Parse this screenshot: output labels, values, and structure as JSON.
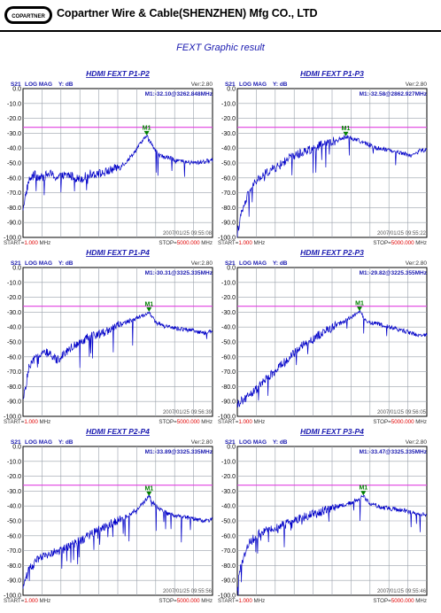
{
  "header": {
    "logo_text": "COPARTNER",
    "company": "Copartner Wire & Cable(SHENZHEN) Mfg CO., LTD",
    "subtitle": "FEXT Graphic result"
  },
  "colors": {
    "trace": "#0000c8",
    "limit": "#e040e0",
    "grid": "#9aa0aa",
    "marker": "#008000"
  },
  "chart_data": [
    {
      "type": "line",
      "title": "HDMI FEXT P1-P2",
      "param": "S21",
      "format": "LOG MAG",
      "yunit": "Y: dB",
      "version": "Ver:2.80",
      "marker": {
        "label": "M1",
        "text": "M1:-32.10@3262.848MHz",
        "x": 3262.848,
        "y": -32.1
      },
      "timestamp": "2007/01/25 09:55:08",
      "start_label": "START=",
      "start_value": "1.000",
      "stop_label": "STOP=",
      "stop_value": "5000.000",
      "freq_unit": "MHz",
      "xlim": [
        1,
        5000
      ],
      "ylim": [
        -100,
        0
      ],
      "yticks": [
        "0.0",
        "-10.0",
        "-20.0",
        "-30.0",
        "-40.0",
        "-50.0",
        "-60.0",
        "-70.0",
        "-80.0",
        "-90.0",
        "-100.0"
      ],
      "limit_line_db": -26,
      "series": [
        {
          "x": [
            1,
            150,
            300,
            500,
            700,
            900,
            1200,
            1500,
            1800,
            2100,
            2400,
            2700,
            2900,
            3100,
            3262.848,
            3400,
            3600,
            3900,
            4200,
            4500,
            4800,
            5000
          ],
          "y": [
            -80,
            -62,
            -58,
            -60,
            -57,
            -60,
            -58,
            -61,
            -57,
            -57,
            -54,
            -50,
            -44,
            -37,
            -32.1,
            -38,
            -45,
            -47,
            -49,
            -50,
            -49,
            -48
          ]
        }
      ]
    },
    {
      "type": "line",
      "title": "HDMI FEXT P1-P3",
      "param": "S21",
      "format": "LOG MAG",
      "yunit": "Y: dB",
      "version": "Ver:2.80",
      "marker": {
        "label": "M1",
        "text": "M1:-32.58@2862.927MHz",
        "x": 2862.927,
        "y": -32.58
      },
      "timestamp": "2007/01/25 09:55:22",
      "start_label": "START=",
      "start_value": "1.000",
      "stop_label": "STOP=",
      "stop_value": "5000.000",
      "freq_unit": "MHz",
      "xlim": [
        1,
        5000
      ],
      "ylim": [
        -100,
        0
      ],
      "yticks": [
        "0.0",
        "-10.0",
        "-20.0",
        "-30.0",
        "-40.0",
        "-50.0",
        "-60.0",
        "-70.0",
        "-80.0",
        "-90.0",
        "-100.0"
      ],
      "limit_line_db": -26,
      "series": [
        {
          "x": [
            1,
            100,
            300,
            500,
            800,
            1100,
            1400,
            1700,
            2000,
            2300,
            2600,
            2862.927,
            3100,
            3400,
            3700,
            4000,
            4300,
            4600,
            4800,
            5000
          ],
          "y": [
            -97,
            -85,
            -70,
            -62,
            -56,
            -52,
            -46,
            -43,
            -40,
            -37,
            -35,
            -32.58,
            -34,
            -37,
            -40,
            -41,
            -43,
            -45,
            -42,
            -41
          ]
        }
      ]
    },
    {
      "type": "line",
      "title": "HDMI FEXT P1-P4",
      "param": "S21",
      "format": "LOG MAG",
      "yunit": "Y: dB",
      "version": "Ver:2.80",
      "marker": {
        "label": "M1",
        "text": "M1:-30.31@3325.335MHz",
        "x": 3325.335,
        "y": -30.31
      },
      "timestamp": "2007/01/25 09:56:39",
      "start_label": "START=",
      "start_value": "1.000",
      "stop_label": "STOP=",
      "stop_value": "5000.000",
      "freq_unit": "MHz",
      "xlim": [
        1,
        5000
      ],
      "ylim": [
        -100,
        0
      ],
      "yticks": [
        "0.0",
        "-10.0",
        "-20.0",
        "-30.0",
        "-40.0",
        "-50.0",
        "-60.0",
        "-70.0",
        "-80.0",
        "-90.0",
        "-100.0"
      ],
      "limit_line_db": -26,
      "series": [
        {
          "x": [
            1,
            150,
            350,
            600,
            900,
            1200,
            1500,
            1800,
            2100,
            2400,
            2700,
            3000,
            3325.335,
            3500,
            3800,
            4100,
            4400,
            4700,
            5000
          ],
          "y": [
            -90,
            -68,
            -60,
            -57,
            -62,
            -55,
            -50,
            -46,
            -44,
            -40,
            -37,
            -34,
            -30.31,
            -37,
            -40,
            -41,
            -42,
            -44,
            -43
          ]
        }
      ]
    },
    {
      "type": "line",
      "title": "HDMI FEXT P2-P3",
      "param": "S21",
      "format": "LOG MAG",
      "yunit": "Y: dB",
      "version": "Ver:2.80",
      "marker": {
        "label": "M1",
        "text": "M1:-29.82@3225.355MHz",
        "x": 3225.355,
        "y": -29.82
      },
      "timestamp": "2007/01/25 09:56:05",
      "start_label": "START=",
      "start_value": "1.000",
      "stop_label": "STOP=",
      "stop_value": "5000.000",
      "freq_unit": "MHz",
      "xlim": [
        1,
        5000
      ],
      "ylim": [
        -100,
        0
      ],
      "yticks": [
        "0.0",
        "-10.0",
        "-20.0",
        "-30.0",
        "-40.0",
        "-50.0",
        "-60.0",
        "-70.0",
        "-80.0",
        "-90.0",
        "-100.0"
      ],
      "limit_line_db": -26,
      "series": [
        {
          "x": [
            1,
            200,
            500,
            800,
            1100,
            1400,
            1700,
            2000,
            2300,
            2600,
            2900,
            3225.355,
            3400,
            3700,
            4000,
            4300,
            4600,
            4800,
            5000
          ],
          "y": [
            -92,
            -88,
            -82,
            -74,
            -67,
            -60,
            -53,
            -48,
            -43,
            -39,
            -35,
            -29.82,
            -36,
            -38,
            -40,
            -42,
            -44,
            -46,
            -45
          ]
        }
      ]
    },
    {
      "type": "line",
      "title": "HDMI FEXT P2-P4",
      "param": "S21",
      "format": "LOG MAG",
      "yunit": "Y: dB",
      "version": "Ver:2.80",
      "marker": {
        "label": "M1",
        "text": "M1:-33.89@3325.335MHz",
        "x": 3325.335,
        "y": -33.89
      },
      "timestamp": "2007/01/25 09:55:56",
      "start_label": "START=",
      "start_value": "1.000",
      "stop_label": "STOP=",
      "stop_value": "5000.000",
      "freq_unit": "MHz",
      "xlim": [
        1,
        5000
      ],
      "ylim": [
        -100,
        0
      ],
      "yticks": [
        "0.0",
        "-10.0",
        "-20.0",
        "-30.0",
        "-40.0",
        "-50.0",
        "-60.0",
        "-70.0",
        "-80.0",
        "-90.0",
        "-100.0"
      ],
      "limit_line_db": -26,
      "series": [
        {
          "x": [
            1,
            150,
            400,
            700,
            1000,
            1300,
            1600,
            1900,
            2200,
            2500,
            2800,
            3100,
            3325.335,
            3500,
            3800,
            4100,
            4400,
            4700,
            5000
          ],
          "y": [
            -95,
            -83,
            -76,
            -72,
            -70,
            -66,
            -62,
            -57,
            -53,
            -50,
            -46,
            -40,
            -33.89,
            -40,
            -45,
            -47,
            -48,
            -50,
            -49
          ]
        }
      ]
    },
    {
      "type": "line",
      "title": "HDMI FEXT P3-P4",
      "param": "S21",
      "format": "LOG MAG",
      "yunit": "Y: dB",
      "version": "Ver:2.80",
      "marker": {
        "label": "M1",
        "text": "M1:-33.47@3325.335MHz",
        "x": 3325.335,
        "y": -33.47
      },
      "timestamp": "2007/01/25 09:55:46",
      "start_label": "START=",
      "start_value": "1.000",
      "stop_label": "STOP=",
      "stop_value": "5000.000",
      "freq_unit": "MHz",
      "xlim": [
        1,
        5000
      ],
      "ylim": [
        -100,
        0
      ],
      "yticks": [
        "0.0",
        "-10.0",
        "-20.0",
        "-30.0",
        "-40.0",
        "-50.0",
        "-60.0",
        "-70.0",
        "-80.0",
        "-90.0",
        "-100.0"
      ],
      "limit_line_db": -26,
      "series": [
        {
          "x": [
            1,
            100,
            300,
            600,
            900,
            1200,
            1500,
            1800,
            2100,
            2400,
            2700,
            3000,
            3325.335,
            3500,
            3800,
            4100,
            4400,
            4700,
            5000
          ],
          "y": [
            -95,
            -80,
            -65,
            -58,
            -55,
            -53,
            -50,
            -47,
            -45,
            -42,
            -40,
            -38,
            -33.47,
            -38,
            -41,
            -42,
            -43,
            -45,
            -46
          ]
        }
      ]
    }
  ]
}
